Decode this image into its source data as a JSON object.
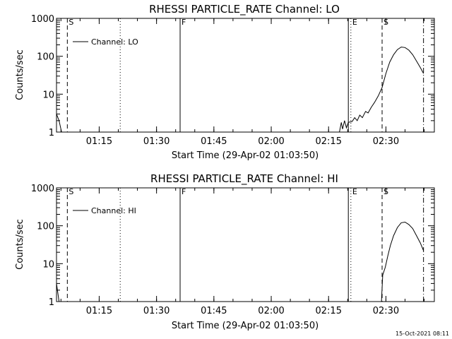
{
  "chart_data": [
    {
      "type": "line",
      "title": "RHESSI PARTICLE_RATE Channel: LO",
      "xlabel": "Start Time (29-Apr-02 01:03:50)",
      "ylabel": "Counts/sec",
      "y_scale": "log",
      "ylim": [
        1,
        1000
      ],
      "y_ticks": [
        {
          "label": "1",
          "value": 1
        },
        {
          "label": "10",
          "value": 10
        },
        {
          "label": "100",
          "value": 100
        },
        {
          "label": "1000",
          "value": 1000
        }
      ],
      "x_start": "01:03:50",
      "x_end": "02:42:40",
      "x_ticks": [
        "01:15",
        "01:30",
        "01:45",
        "02:00",
        "02:15",
        "02:30"
      ],
      "legend": {
        "label": "Channel: LO",
        "placement": "top-left"
      },
      "markers": [
        {
          "label": "S",
          "time": "01:06:40",
          "style": "dashed"
        },
        {
          "label": "",
          "time": "01:20:30",
          "style": "dotted"
        },
        {
          "label": "F",
          "time": "01:36:10",
          "style": "solid"
        },
        {
          "label": "",
          "time": "02:20:10",
          "style": "solid"
        },
        {
          "label": "E",
          "time": "02:20:50",
          "style": "dotted"
        },
        {
          "label": "S",
          "time": "02:29:00",
          "style": "dashed"
        },
        {
          "label": "",
          "time": "02:39:50",
          "style": "dashdot"
        }
      ],
      "series": [
        {
          "values": [
            [
              "01:03:50",
              3
            ],
            [
              "01:04:30",
              2
            ],
            [
              "01:05:10",
              1
            ],
            [
              "02:17:50",
              1
            ],
            [
              "02:18:20",
              1.8
            ],
            [
              "02:18:40",
              1.2
            ],
            [
              "02:19:10",
              2.0
            ],
            [
              "02:19:40",
              1.3
            ],
            [
              "02:20:10",
              1.8
            ],
            [
              "02:21:10",
              1.9
            ],
            [
              "02:21:50",
              2.4
            ],
            [
              "02:22:30",
              2.0
            ],
            [
              "02:23:10",
              2.8
            ],
            [
              "02:23:50",
              2.4
            ],
            [
              "02:24:40",
              3.5
            ],
            [
              "02:25:20",
              3.2
            ],
            [
              "02:26:10",
              4.5
            ],
            [
              "02:27:00",
              6
            ],
            [
              "02:28:00",
              9
            ],
            [
              "02:29:00",
              15
            ],
            [
              "02:30:00",
              35
            ],
            [
              "02:31:00",
              70
            ],
            [
              "02:32:00",
              110
            ],
            [
              "02:33:00",
              150
            ],
            [
              "02:34:00",
              175
            ],
            [
              "02:35:00",
              170
            ],
            [
              "02:36:00",
              145
            ],
            [
              "02:37:00",
              110
            ],
            [
              "02:38:00",
              75
            ],
            [
              "02:39:00",
              50
            ],
            [
              "02:39:50",
              35
            ]
          ]
        }
      ]
    },
    {
      "type": "line",
      "title": "RHESSI PARTICLE_RATE Channel: HI",
      "xlabel": "Start Time (29-Apr-02 01:03:50)",
      "ylabel": "Counts/sec",
      "y_scale": "log",
      "ylim": [
        1,
        1000
      ],
      "y_ticks": [
        {
          "label": "1",
          "value": 1
        },
        {
          "label": "10",
          "value": 10
        },
        {
          "label": "100",
          "value": 100
        },
        {
          "label": "1000",
          "value": 1000
        }
      ],
      "x_start": "01:03:50",
      "x_end": "02:42:40",
      "x_ticks": [
        "01:15",
        "01:30",
        "01:45",
        "02:00",
        "02:15",
        "02:30"
      ],
      "legend": {
        "label": "Channel: HI",
        "placement": "top-left"
      },
      "markers": [
        {
          "label": "S",
          "time": "01:06:40",
          "style": "dashed"
        },
        {
          "label": "",
          "time": "01:20:30",
          "style": "dotted"
        },
        {
          "label": "F",
          "time": "01:36:10",
          "style": "solid"
        },
        {
          "label": "",
          "time": "02:20:10",
          "style": "solid"
        },
        {
          "label": "E",
          "time": "02:20:50",
          "style": "dotted"
        },
        {
          "label": "S",
          "time": "02:29:00",
          "style": "dashed"
        },
        {
          "label": "",
          "time": "02:39:50",
          "style": "dashdot"
        }
      ],
      "series": [
        {
          "values": [
            [
              "01:03:50",
              3
            ],
            [
              "01:04:30",
              1
            ],
            [
              "02:28:50",
              1
            ],
            [
              "02:29:10",
              5
            ],
            [
              "02:29:50",
              8
            ],
            [
              "02:30:30",
              16
            ],
            [
              "02:31:10",
              30
            ],
            [
              "02:32:00",
              55
            ],
            [
              "02:33:00",
              90
            ],
            [
              "02:34:00",
              120
            ],
            [
              "02:35:00",
              125
            ],
            [
              "02:36:00",
              108
            ],
            [
              "02:37:00",
              85
            ],
            [
              "02:38:00",
              55
            ],
            [
              "02:39:00",
              35
            ],
            [
              "02:39:50",
              22
            ]
          ]
        }
      ]
    }
  ],
  "footer": {
    "timestamp": "15-Oct-2021 08:11"
  }
}
